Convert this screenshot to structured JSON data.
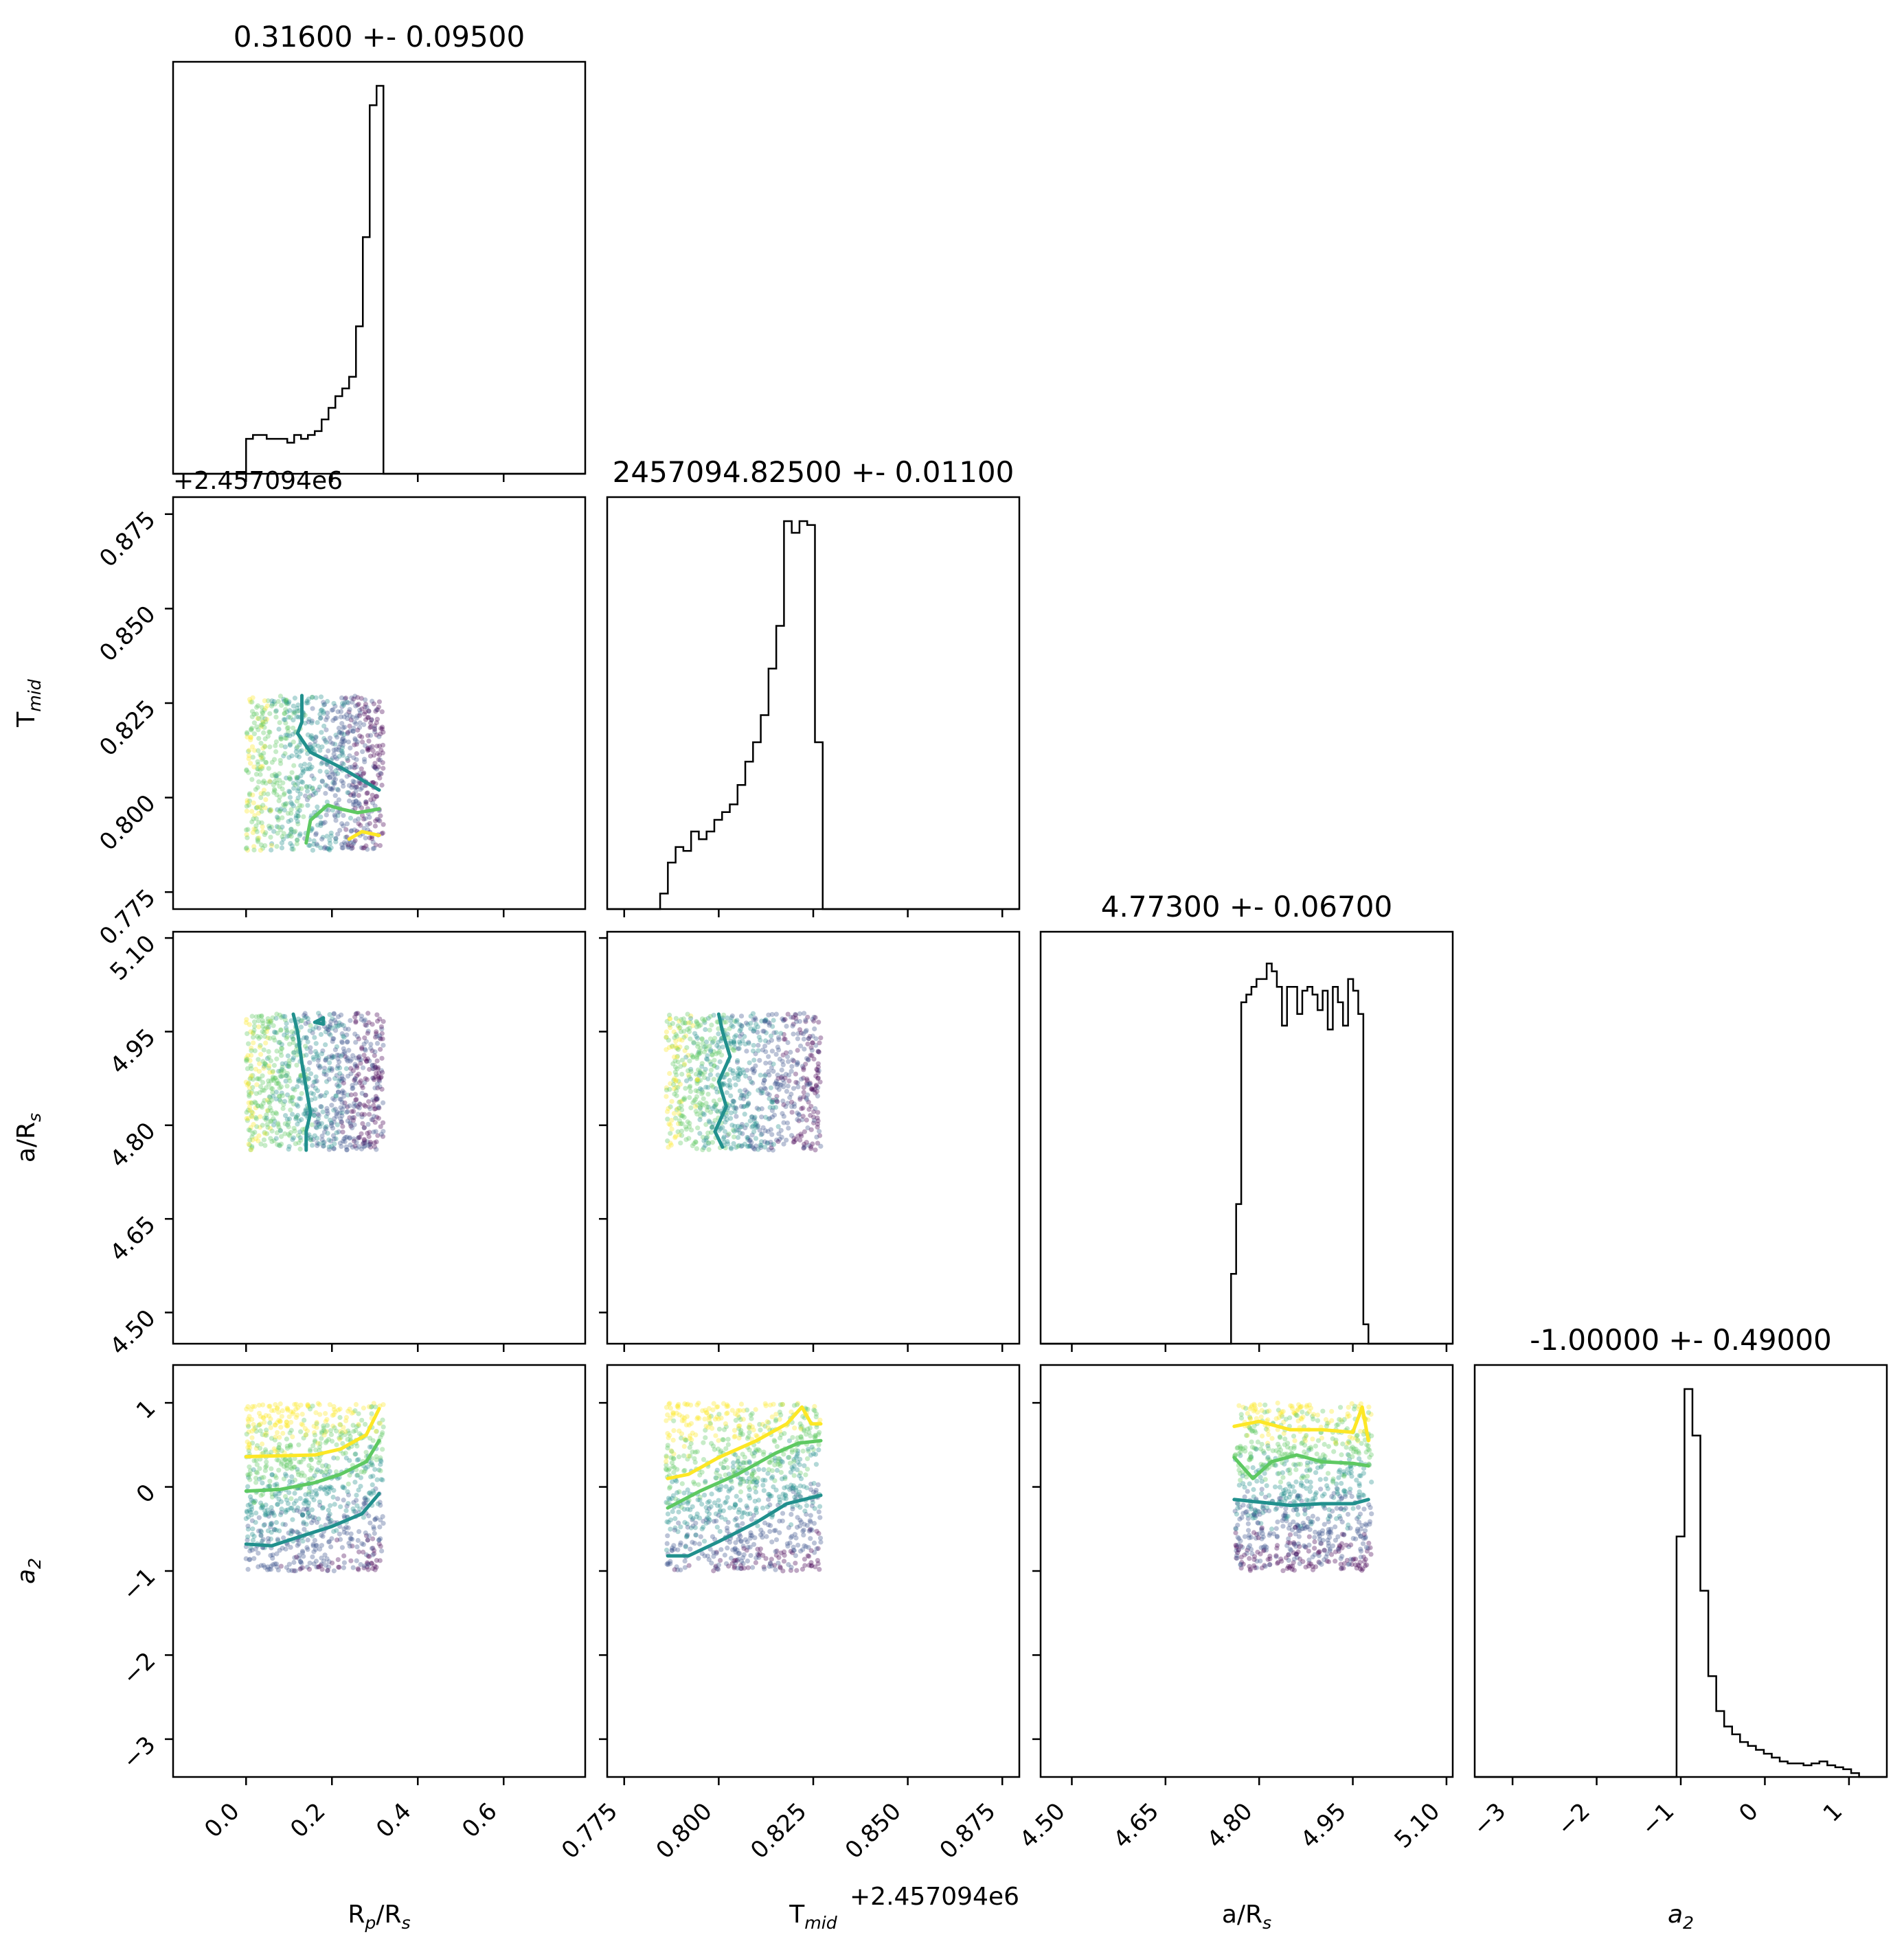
{
  "chart_data": {
    "type": "corner",
    "params": [
      {
        "key": "rp",
        "label_main": "R",
        "label_sub": "p",
        "label_tail": "/R",
        "label_sub2": "s",
        "title": "0.31600 +- 0.09500",
        "range": [
          -0.17,
          0.79
        ],
        "ticks": [
          0.0,
          0.2,
          0.4,
          0.6
        ],
        "tick_labels": [
          "0.0",
          "0.2",
          "0.4",
          "0.6"
        ],
        "sample_range": [
          0.0,
          0.32
        ]
      },
      {
        "key": "tmid",
        "label_main": "T",
        "label_sub": "mid",
        "label_tail": "",
        "label_sub2": "",
        "title": "2457094.82500 +- 0.01100",
        "offset_text": "+2.457094e6",
        "range": [
          0.7705,
          0.8795
        ],
        "ticks": [
          0.775,
          0.8,
          0.825,
          0.85,
          0.875
        ],
        "tick_labels": [
          "0.775",
          "0.800",
          "0.825",
          "0.850",
          "0.875"
        ],
        "sample_range": [
          0.786,
          0.827
        ]
      },
      {
        "key": "ars",
        "label_main": "a/R",
        "label_sub": "s",
        "label_tail": "",
        "label_sub2": "",
        "title": "4.77300 +- 0.06700",
        "range": [
          4.45,
          5.11
        ],
        "ticks": [
          4.5,
          4.65,
          4.8,
          4.95,
          5.1
        ],
        "tick_labels": [
          "4.50",
          "4.65",
          "4.80",
          "4.95",
          "5.10"
        ],
        "sample_range": [
          4.76,
          4.98
        ]
      },
      {
        "key": "a2",
        "label_main": "a",
        "label_sub": "2",
        "label_tail": "",
        "label_sub2": "",
        "italic": true,
        "title": "-1.00000 +- 0.49000",
        "range": [
          -3.45,
          1.45
        ],
        "ticks": [
          -3,
          -2,
          -1,
          0,
          1
        ],
        "tick_labels": [
          "−3",
          "−2",
          "−1",
          "0",
          "1"
        ],
        "sample_range": [
          -1.0,
          1.0
        ]
      }
    ],
    "histograms": [
      {
        "param": "rp",
        "edges_range": [
          0.0,
          0.32
        ],
        "counts": [
          0.09,
          0.1,
          0.1,
          0.09,
          0.09,
          0.09,
          0.08,
          0.1,
          0.09,
          0.1,
          0.11,
          0.14,
          0.17,
          0.2,
          0.22,
          0.25,
          0.38,
          0.61,
          0.95,
          1.0
        ]
      },
      {
        "param": "tmid",
        "edges_range": [
          0.7845,
          0.8275
        ],
        "counts": [
          0.04,
          0.12,
          0.16,
          0.15,
          0.2,
          0.18,
          0.2,
          0.23,
          0.25,
          0.27,
          0.32,
          0.38,
          0.43,
          0.5,
          0.62,
          0.73,
          1.0,
          0.97,
          1.0,
          0.99,
          0.43
        ]
      },
      {
        "param": "ars",
        "edges_range": [
          4.755,
          4.975
        ],
        "counts": [
          0.18,
          0.36,
          0.88,
          0.9,
          0.92,
          0.94,
          0.94,
          0.98,
          0.96,
          0.92,
          0.82,
          0.92,
          0.92,
          0.85,
          0.91,
          0.92,
          0.9,
          0.86,
          0.91,
          0.81,
          0.92,
          0.88,
          0.82,
          0.94,
          0.91,
          0.85,
          0.05
        ]
      },
      {
        "param": "a2",
        "edges_range": [
          -1.05,
          1.12
        ],
        "counts": [
          0.62,
          1.0,
          0.88,
          0.48,
          0.26,
          0.17,
          0.13,
          0.11,
          0.09,
          0.08,
          0.07,
          0.06,
          0.05,
          0.04,
          0.035,
          0.035,
          0.03,
          0.035,
          0.04,
          0.03,
          0.025,
          0.02,
          0.01
        ]
      }
    ],
    "contours": [
      {
        "x": "rp",
        "y": "tmid",
        "lines": [
          {
            "color": "#21908d",
            "points": [
              [
                0.13,
                0.827
              ],
              [
                0.13,
                0.82
              ],
              [
                0.12,
                0.817
              ],
              [
                0.15,
                0.812
              ],
              [
                0.22,
                0.808
              ],
              [
                0.28,
                0.804
              ],
              [
                0.31,
                0.802
              ]
            ]
          },
          {
            "color": "#5ec962",
            "points": [
              [
                0.14,
                0.788
              ],
              [
                0.15,
                0.794
              ],
              [
                0.19,
                0.798
              ],
              [
                0.22,
                0.797
              ],
              [
                0.26,
                0.796
              ],
              [
                0.31,
                0.797
              ]
            ]
          },
          {
            "color": "#fde725",
            "points": [
              [
                0.24,
                0.789
              ],
              [
                0.27,
                0.791
              ],
              [
                0.31,
                0.79
              ]
            ]
          }
        ]
      },
      {
        "x": "rp",
        "y": "ars",
        "lines": [
          {
            "color": "#21908d",
            "points": [
              [
                0.11,
                4.978
              ],
              [
                0.12,
                4.95
              ],
              [
                0.13,
                4.9
              ],
              [
                0.14,
                4.86
              ],
              [
                0.15,
                4.82
              ],
              [
                0.14,
                4.79
              ],
              [
                0.14,
                4.76
              ]
            ]
          },
          {
            "color": "#21908d",
            "points": [
              [
                0.16,
                4.965
              ],
              [
                0.18,
                4.972
              ],
              [
                0.18,
                4.962
              ],
              [
                0.16,
                4.965
              ]
            ]
          }
        ]
      },
      {
        "x": "tmid",
        "y": "ars",
        "lines": [
          {
            "color": "#21908d",
            "points": [
              [
                0.8,
                4.978
              ],
              [
                0.801,
                4.95
              ],
              [
                0.803,
                4.91
              ],
              [
                0.8,
                4.87
              ],
              [
                0.802,
                4.83
              ],
              [
                0.799,
                4.79
              ],
              [
                0.801,
                4.765
              ]
            ]
          }
        ]
      },
      {
        "x": "rp",
        "y": "a2",
        "lines": [
          {
            "color": "#fde725",
            "points": [
              [
                0.0,
                0.36
              ],
              [
                0.08,
                0.37
              ],
              [
                0.16,
                0.38
              ],
              [
                0.22,
                0.45
              ],
              [
                0.28,
                0.62
              ],
              [
                0.31,
                0.93
              ]
            ]
          },
          {
            "color": "#5ec962",
            "points": [
              [
                0.0,
                -0.05
              ],
              [
                0.08,
                -0.03
              ],
              [
                0.16,
                0.05
              ],
              [
                0.22,
                0.15
              ],
              [
                0.28,
                0.3
              ],
              [
                0.31,
                0.55
              ]
            ]
          },
          {
            "color": "#21908d",
            "points": [
              [
                0.0,
                -0.68
              ],
              [
                0.06,
                -0.7
              ],
              [
                0.12,
                -0.6
              ],
              [
                0.2,
                -0.47
              ],
              [
                0.27,
                -0.32
              ],
              [
                0.31,
                -0.08
              ]
            ]
          }
        ]
      },
      {
        "x": "tmid",
        "y": "a2",
        "lines": [
          {
            "color": "#fde725",
            "points": [
              [
                0.7865,
                0.1
              ],
              [
                0.792,
                0.15
              ],
              [
                0.8,
                0.35
              ],
              [
                0.81,
                0.55
              ],
              [
                0.818,
                0.75
              ],
              [
                0.822,
                0.95
              ],
              [
                0.8245,
                0.75
              ],
              [
                0.827,
                0.75
              ]
            ]
          },
          {
            "color": "#5ec962",
            "points": [
              [
                0.7865,
                -0.25
              ],
              [
                0.795,
                -0.05
              ],
              [
                0.805,
                0.15
              ],
              [
                0.815,
                0.4
              ],
              [
                0.821,
                0.52
              ],
              [
                0.827,
                0.55
              ]
            ]
          },
          {
            "color": "#21908d",
            "points": [
              [
                0.7865,
                -0.82
              ],
              [
                0.792,
                -0.82
              ],
              [
                0.8,
                -0.65
              ],
              [
                0.81,
                -0.42
              ],
              [
                0.818,
                -0.2
              ],
              [
                0.827,
                -0.1
              ]
            ]
          }
        ]
      },
      {
        "x": "ars",
        "y": "a2",
        "lines": [
          {
            "color": "#fde725",
            "points": [
              [
                4.76,
                0.72
              ],
              [
                4.8,
                0.78
              ],
              [
                4.85,
                0.68
              ],
              [
                4.9,
                0.68
              ],
              [
                4.95,
                0.65
              ],
              [
                4.965,
                0.95
              ],
              [
                4.975,
                0.55
              ]
            ]
          },
          {
            "color": "#5ec962",
            "points": [
              [
                4.76,
                0.35
              ],
              [
                4.79,
                0.1
              ],
              [
                4.82,
                0.3
              ],
              [
                4.86,
                0.38
              ],
              [
                4.9,
                0.3
              ],
              [
                4.95,
                0.28
              ],
              [
                4.975,
                0.25
              ]
            ]
          },
          {
            "color": "#21908d",
            "points": [
              [
                4.76,
                -0.15
              ],
              [
                4.8,
                -0.18
              ],
              [
                4.85,
                -0.22
              ],
              [
                4.9,
                -0.2
              ],
              [
                4.95,
                -0.2
              ],
              [
                4.975,
                -0.15
              ]
            ]
          }
        ]
      }
    ],
    "colormap": [
      "#440154",
      "#3b528b",
      "#21908d",
      "#5ec962",
      "#fde725"
    ]
  }
}
